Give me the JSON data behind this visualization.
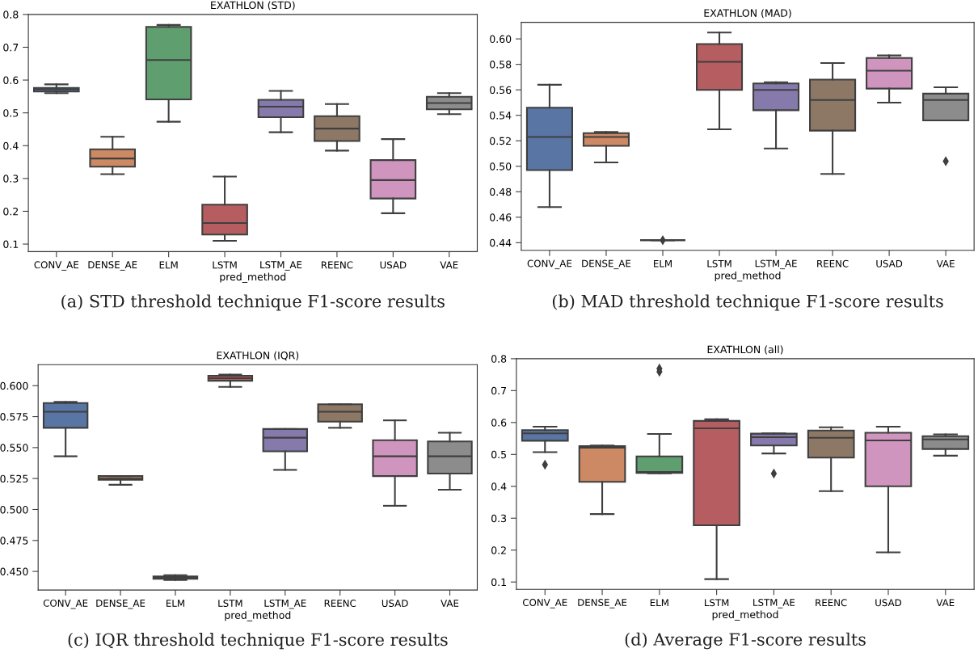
{
  "chart_data": [
    {
      "type": "box",
      "title": "EXATHLON (STD)",
      "xlabel": "pred_method",
      "categories": [
        "CONV_AE",
        "DENSE_AE",
        "ELM",
        "LSTM",
        "LSTM_AE",
        "REENC",
        "USAD",
        "VAE"
      ],
      "colors": [
        "#5975a4",
        "#cc8963",
        "#5f9e6e",
        "#b55d60",
        "#857aab",
        "#8d7866",
        "#d095bf",
        "#8c8c8c"
      ],
      "marker": "diamond",
      "boxes": [
        {
          "low": 0.56,
          "q1": 0.565,
          "median": 0.572,
          "q3": 0.576,
          "high": 0.587
        },
        {
          "low": 0.313,
          "q1": 0.336,
          "median": 0.361,
          "q3": 0.389,
          "high": 0.427
        },
        {
          "low": 0.473,
          "q1": 0.541,
          "median": 0.661,
          "q3": 0.762,
          "high": 0.768
        },
        {
          "low": 0.11,
          "q1": 0.129,
          "median": 0.164,
          "q3": 0.22,
          "high": 0.306
        },
        {
          "low": 0.441,
          "q1": 0.487,
          "median": 0.519,
          "q3": 0.54,
          "high": 0.567
        },
        {
          "low": 0.385,
          "q1": 0.414,
          "median": 0.452,
          "q3": 0.49,
          "high": 0.527
        },
        {
          "low": 0.194,
          "q1": 0.239,
          "median": 0.295,
          "q3": 0.356,
          "high": 0.42
        },
        {
          "low": 0.496,
          "q1": 0.511,
          "median": 0.53,
          "q3": 0.549,
          "high": 0.56
        }
      ],
      "ylim": [
        0.077,
        0.8
      ],
      "yticks": [
        0.1,
        0.2,
        0.3,
        0.4,
        0.5,
        0.6,
        0.7,
        0.8
      ],
      "annotations": [
        "(a) STD threshold technique F1-score results"
      ]
    },
    {
      "type": "box",
      "title": "EXATHLON (MAD)",
      "xlabel": "pred_method",
      "categories": [
        "CONV_AE",
        "DENSE_AE",
        "ELM",
        "LSTM",
        "LSTM_AE",
        "REENC",
        "USAD",
        "VAE"
      ],
      "colors": [
        "#5975a4",
        "#cc8963",
        null,
        "#b55d60",
        "#857aab",
        "#8d7866",
        "#d095bf",
        "#8c8c8c"
      ],
      "marker": "diamond",
      "boxes": [
        {
          "low": 0.468,
          "q1": 0.497,
          "median": 0.523,
          "q3": 0.546,
          "high": 0.564
        },
        {
          "low": 0.503,
          "q1": 0.516,
          "median": 0.523,
          "q3": 0.526,
          "high": 0.527
        },
        {
          "low": 0.442,
          "q1": 0.442,
          "median": 0.442,
          "q3": 0.442,
          "high": 0.442,
          "outliers": [
            0.442
          ]
        },
        {
          "low": 0.529,
          "q1": 0.56,
          "median": 0.582,
          "q3": 0.596,
          "high": 0.605
        },
        {
          "low": 0.514,
          "q1": 0.544,
          "median": 0.56,
          "q3": 0.565,
          "high": 0.566
        },
        {
          "low": 0.494,
          "q1": 0.528,
          "median": 0.552,
          "q3": 0.568,
          "high": 0.581
        },
        {
          "low": 0.55,
          "q1": 0.561,
          "median": 0.575,
          "q3": 0.585,
          "high": 0.587
        },
        {
          "low": 0.536,
          "q1": 0.536,
          "median": 0.552,
          "q3": 0.557,
          "high": 0.562,
          "outliers": [
            0.504
          ]
        }
      ],
      "ylim": [
        0.434,
        0.613
      ],
      "yticks": [
        {
          "value": 0.44,
          "label": "0.44"
        },
        {
          "value": 0.46,
          "label": "0.46"
        },
        {
          "value": 0.48,
          "label": "0.48"
        },
        {
          "value": 0.5,
          "label": "0.50"
        },
        {
          "value": 0.52,
          "label": "0.52"
        },
        {
          "value": 0.54,
          "label": "0.54"
        },
        {
          "value": 0.56,
          "label": "0.56"
        },
        {
          "value": 0.58,
          "label": "0.58"
        },
        {
          "value": 0.6,
          "label": "0.60"
        }
      ],
      "annotations": [
        "(b) MAD threshold technique F1-score results"
      ]
    },
    {
      "type": "box",
      "title": "EXATHLON (IQR)",
      "xlabel": "pred_method",
      "categories": [
        "CONV_AE",
        "DENSE_AE",
        "ELM",
        "LSTM",
        "LSTM_AE",
        "REENC",
        "USAD",
        "VAE"
      ],
      "colors": [
        "#5975a4",
        "#cc8963",
        "#5f9e6e",
        "#b55d60",
        "#857aab",
        "#8d7866",
        "#d095bf",
        "#8c8c8c"
      ],
      "marker": "diamond",
      "boxes": [
        {
          "low": 0.543,
          "q1": 0.566,
          "median": 0.579,
          "q3": 0.586,
          "high": 0.587
        },
        {
          "low": 0.52,
          "q1": 0.524,
          "median": 0.525,
          "q3": 0.527,
          "high": 0.527
        },
        {
          "low": 0.443,
          "q1": 0.444,
          "median": 0.445,
          "q3": 0.446,
          "high": 0.447
        },
        {
          "low": 0.599,
          "q1": 0.604,
          "median": 0.606,
          "q3": 0.608,
          "high": 0.609
        },
        {
          "low": 0.532,
          "q1": 0.547,
          "median": 0.558,
          "q3": 0.565,
          "high": 0.565
        },
        {
          "low": 0.566,
          "q1": 0.571,
          "median": 0.579,
          "q3": 0.585,
          "high": 0.585
        },
        {
          "low": 0.503,
          "q1": 0.527,
          "median": 0.543,
          "q3": 0.556,
          "high": 0.572
        },
        {
          "low": 0.516,
          "q1": 0.529,
          "median": 0.543,
          "q3": 0.555,
          "high": 0.562
        }
      ],
      "ylim": [
        0.435,
        0.617
      ],
      "yticks": [
        {
          "value": 0.45,
          "label": "0.450"
        },
        {
          "value": 0.475,
          "label": "0.475"
        },
        {
          "value": 0.5,
          "label": "0.500"
        },
        {
          "value": 0.525,
          "label": "0.525"
        },
        {
          "value": 0.55,
          "label": "0.550"
        },
        {
          "value": 0.575,
          "label": "0.575"
        },
        {
          "value": 0.6,
          "label": "0.600"
        }
      ],
      "annotations": [
        "(c) IQR threshold technique F1-score results"
      ]
    },
    {
      "type": "box",
      "title": "EXATHLON (all)",
      "xlabel": "pred_method",
      "categories": [
        "CONV_AE",
        "DENSE_AE",
        "ELM",
        "LSTM",
        "LSTM_AE",
        "REENC",
        "USAD",
        "VAE"
      ],
      "colors": [
        "#5975a4",
        "#cc8963",
        "#5f9e6e",
        "#b55d60",
        "#857aab",
        "#8d7866",
        "#d095bf",
        "#8c8c8c"
      ],
      "marker": "diamond",
      "boxes": [
        {
          "low": 0.507,
          "q1": 0.543,
          "median": 0.566,
          "q3": 0.576,
          "high": 0.587,
          "outliers": [
            0.468
          ]
        },
        {
          "low": 0.313,
          "q1": 0.414,
          "median": 0.521,
          "q3": 0.526,
          "high": 0.528
        },
        {
          "low": 0.441,
          "q1": 0.442,
          "median": 0.445,
          "q3": 0.494,
          "high": 0.564,
          "outliers": [
            0.769,
            0.759
          ]
        },
        {
          "low": 0.109,
          "q1": 0.278,
          "median": 0.582,
          "q3": 0.605,
          "high": 0.61
        },
        {
          "low": 0.503,
          "q1": 0.528,
          "median": 0.554,
          "q3": 0.565,
          "high": 0.566,
          "outliers": [
            0.44
          ]
        },
        {
          "low": 0.385,
          "q1": 0.49,
          "median": 0.552,
          "q3": 0.575,
          "high": 0.585
        },
        {
          "low": 0.193,
          "q1": 0.4,
          "median": 0.544,
          "q3": 0.568,
          "high": 0.587
        },
        {
          "low": 0.496,
          "q1": 0.517,
          "median": 0.547,
          "q3": 0.557,
          "high": 0.563
        }
      ],
      "ylim": [
        0.077,
        0.8
      ],
      "yticks": [
        0.1,
        0.2,
        0.3,
        0.4,
        0.5,
        0.6,
        0.7,
        0.8
      ],
      "annotations": [
        "(d) Average F1-score results"
      ]
    }
  ]
}
